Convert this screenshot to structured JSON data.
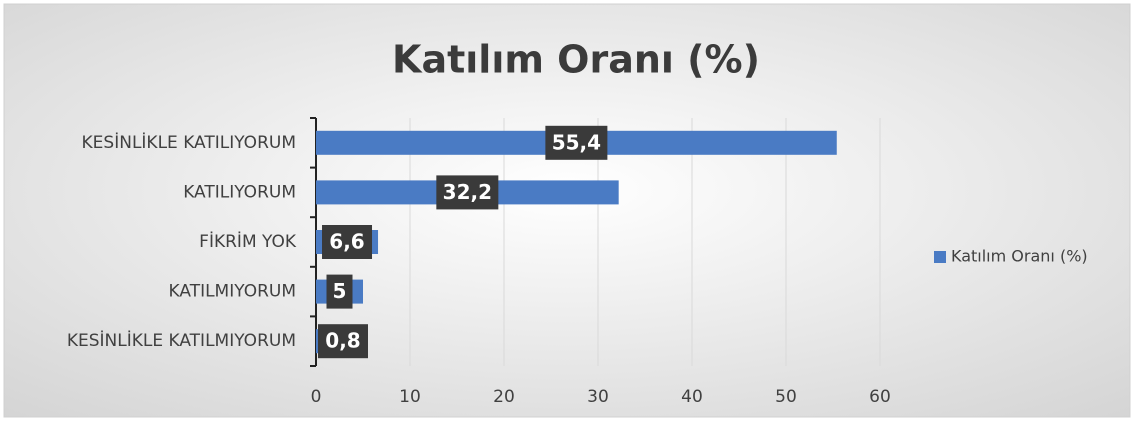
{
  "chart_data": {
    "type": "bar",
    "orientation": "horizontal",
    "title": "Katılım Oranı (%)",
    "categories": [
      "KESİNLİKLE KATILIYORUM",
      "KATILIYORUM",
      "FİKRİM YOK",
      "KATILMIYORUM",
      "KESİNLİKLE KATILMIYORUM"
    ],
    "series": [
      {
        "name": "Katılım Oranı (%)",
        "color": "#4a7bc4",
        "values": [
          55.4,
          32.2,
          6.6,
          5,
          0.8
        ],
        "value_labels": [
          "55,4",
          "32,2",
          "6,6",
          "5",
          "0,8"
        ]
      }
    ],
    "xlim": [
      0,
      60
    ],
    "xticks": [
      0,
      10,
      20,
      30,
      40,
      50,
      60
    ],
    "grid": true,
    "legend": "right"
  }
}
